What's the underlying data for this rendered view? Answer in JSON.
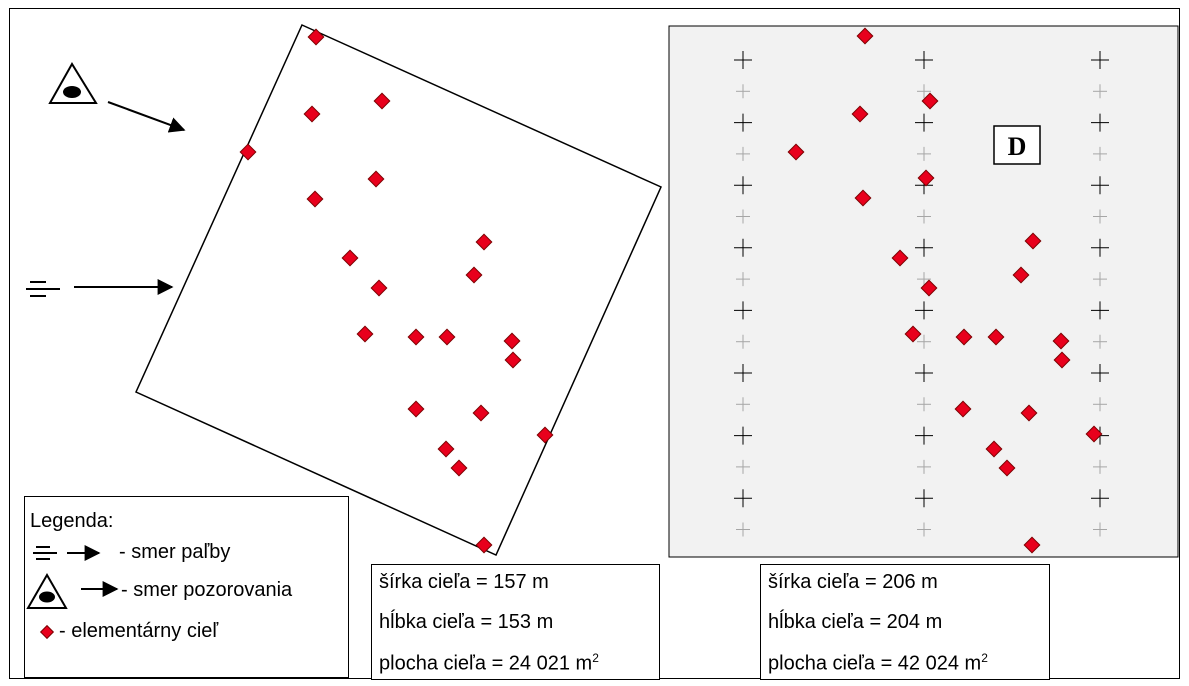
{
  "legend": {
    "title": "Legenda:",
    "fire_direction": "- smer paľby",
    "observation_direction": "- smer pozorovania",
    "elementary_target": "- elementárny cieľ"
  },
  "left_target": {
    "width_text": "šírka cieľa = 157 m",
    "depth_text": "hĺbka cieľa = 153 m",
    "area_prefix": "plocha cieľa = 24 021 m",
    "area_sup": "2"
  },
  "right_target": {
    "label": "D",
    "width_text": "šírka cieľa = 206 m",
    "depth_text": "hĺbka cieľa = 204 m",
    "area_prefix": "plocha cieľa = 42 024 m",
    "area_sup": "2"
  },
  "colors": {
    "target_fill": "#e8001c",
    "right_panel_bg": "#f2f2f2",
    "outline": "#000000",
    "minor_cross": "#a6a6a6"
  },
  "icons": {
    "observer": "eye-triangle-icon",
    "weapon": "fire-direction-icon",
    "target": "red-diamond-icon"
  }
}
